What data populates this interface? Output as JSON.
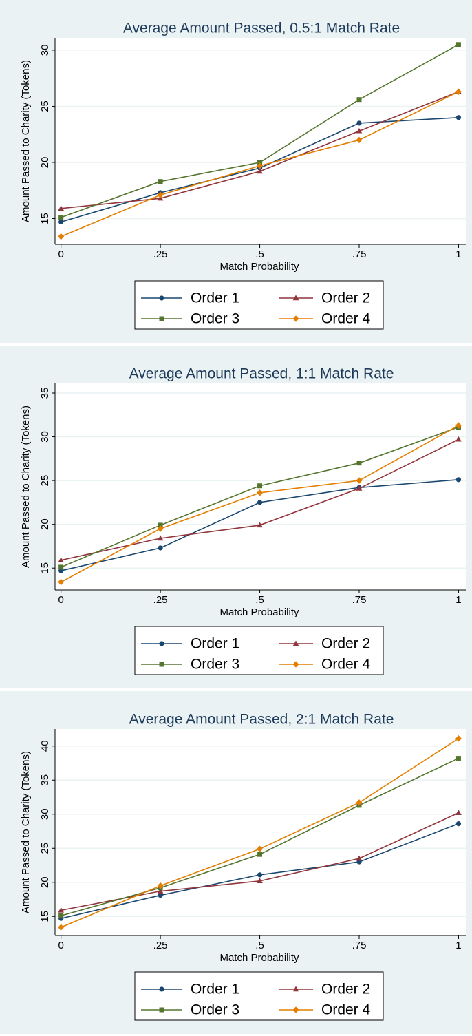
{
  "chart_data": [
    {
      "type": "line",
      "title": "Average Amount Passed, 0.5:1 Match Rate",
      "x_label": "Match Probability",
      "y_label": "Amount Passed to Charity (Tokens)",
      "x": [
        0,
        0.25,
        0.5,
        0.75,
        1
      ],
      "xlim": [
        -0.015,
        1.02
      ],
      "xticks": [
        0,
        {
          "value": 0.25,
          "label": ".25"
        },
        {
          "value": 0.5,
          "label": ".5"
        },
        {
          "value": 0.75,
          "label": ".75"
        },
        1
      ],
      "ylim": [
        12.7,
        31.1
      ],
      "yticks": [
        15,
        20,
        25,
        30
      ],
      "grid": true,
      "series": [
        {
          "name": "Order 1",
          "color": "#1a476f",
          "marker": "circle",
          "values": [
            14.7,
            17.3,
            19.5,
            23.5,
            24.0
          ]
        },
        {
          "name": "Order 2",
          "color": "#90353b",
          "marker": "triangle",
          "values": [
            15.9,
            16.8,
            19.2,
            22.8,
            26.3
          ]
        },
        {
          "name": "Order 3",
          "color": "#55752f",
          "marker": "square",
          "values": [
            15.1,
            18.3,
            20.0,
            25.6,
            30.5
          ]
        },
        {
          "name": "Order 4",
          "color": "#e37e00",
          "marker": "diamond",
          "values": [
            13.4,
            17.1,
            19.7,
            22.0,
            26.3
          ]
        }
      ]
    },
    {
      "type": "line",
      "title": "Average Amount Passed, 1:1 Match Rate",
      "x_label": "Match Probability",
      "y_label": "Amount Passed to Charity (Tokens)",
      "x": [
        0,
        0.25,
        0.5,
        0.75,
        1
      ],
      "xlim": [
        -0.015,
        1.02
      ],
      "xticks": [
        0,
        {
          "value": 0.25,
          "label": ".25"
        },
        {
          "value": 0.5,
          "label": ".5"
        },
        {
          "value": 0.75,
          "label": ".75"
        },
        1
      ],
      "ylim": [
        12.5,
        36.1
      ],
      "yticks": [
        15,
        20,
        25,
        30,
        35
      ],
      "grid": true,
      "series": [
        {
          "name": "Order 1",
          "color": "#1a476f",
          "marker": "circle",
          "values": [
            14.7,
            17.3,
            22.5,
            24.2,
            25.1
          ]
        },
        {
          "name": "Order 2",
          "color": "#90353b",
          "marker": "triangle",
          "values": [
            15.9,
            18.4,
            19.9,
            24.1,
            29.7
          ]
        },
        {
          "name": "Order 3",
          "color": "#55752f",
          "marker": "square",
          "values": [
            15.1,
            19.9,
            24.4,
            27.0,
            31.1
          ]
        },
        {
          "name": "Order 4",
          "color": "#e37e00",
          "marker": "diamond",
          "values": [
            13.4,
            19.5,
            23.6,
            25.0,
            31.3
          ]
        }
      ]
    },
    {
      "type": "line",
      "title": "Average Amount Passed, 2:1 Match Rate",
      "x_label": "Match Probability",
      "y_label": "Amount Passed to Charity (Tokens)",
      "x": [
        0,
        0.25,
        0.5,
        0.75,
        1
      ],
      "xlim": [
        -0.015,
        1.02
      ],
      "xticks": [
        0,
        {
          "value": 0.25,
          "label": ".25"
        },
        {
          "value": 0.5,
          "label": ".5"
        },
        {
          "value": 0.75,
          "label": ".75"
        },
        1
      ],
      "ylim": [
        12.2,
        42.5
      ],
      "yticks": [
        15,
        20,
        25,
        30,
        35,
        40
      ],
      "grid": true,
      "series": [
        {
          "name": "Order 1",
          "color": "#1a476f",
          "marker": "circle",
          "values": [
            14.7,
            18.1,
            21.1,
            23.0,
            28.6
          ]
        },
        {
          "name": "Order 2",
          "color": "#90353b",
          "marker": "triangle",
          "values": [
            15.9,
            18.7,
            20.2,
            23.5,
            30.2
          ]
        },
        {
          "name": "Order 3",
          "color": "#55752f",
          "marker": "square",
          "values": [
            15.1,
            19.2,
            24.1,
            31.3,
            38.2
          ]
        },
        {
          "name": "Order 4",
          "color": "#e37e00",
          "marker": "diamond",
          "values": [
            13.4,
            19.5,
            24.9,
            31.7,
            41.1
          ]
        }
      ]
    }
  ]
}
